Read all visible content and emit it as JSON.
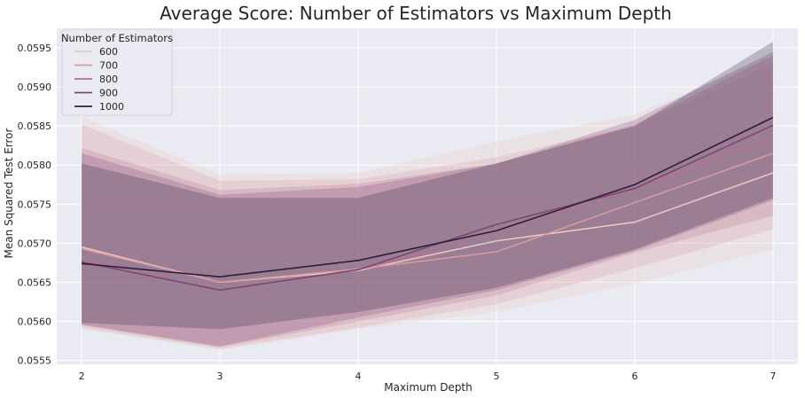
{
  "chart_data": {
    "type": "line",
    "title": "Average Score: Number of Estimators vs Maximum Depth",
    "xlabel": "Maximum Depth",
    "ylabel": "Mean Squared Test Error",
    "x": [
      2,
      3,
      4,
      5,
      6,
      7
    ],
    "xlim": [
      1.82,
      7.18
    ],
    "ylim": [
      0.05545,
      0.05975
    ],
    "yticks": [
      "0.0555",
      "0.0560",
      "0.0565",
      "0.0570",
      "0.0575",
      "0.0580",
      "0.0585",
      "0.0590",
      "0.0595"
    ],
    "grid": true,
    "legend": {
      "title": "Number of Estimators",
      "position": "top-left"
    },
    "series": [
      {
        "name": "600",
        "color": "#ecc7c1",
        "values": [
          0.05695,
          0.0565,
          0.05665,
          0.05703,
          0.05727,
          0.0579
        ],
        "lower": [
          0.0559,
          0.05563,
          0.0559,
          0.05612,
          0.05648,
          0.05692
        ],
        "upper": [
          0.05862,
          0.05788,
          0.0579,
          0.0583,
          0.05865,
          0.0594
        ]
      },
      {
        "name": "700",
        "color": "#d59aa3",
        "values": [
          0.05693,
          0.0565,
          0.05667,
          0.05689,
          0.05752,
          0.05815
        ],
        "lower": [
          0.05592,
          0.05565,
          0.05592,
          0.05622,
          0.05668,
          0.05718
        ],
        "upper": [
          0.05852,
          0.0578,
          0.05782,
          0.0581,
          0.0585,
          0.0593
        ]
      },
      {
        "name": "800",
        "color": "#b4738e",
        "values": [
          0.05678,
          0.0564,
          0.05666,
          0.05714,
          0.0577,
          0.05835
        ],
        "lower": [
          0.05595,
          0.05567,
          0.056,
          0.05633,
          0.05688,
          0.05735
        ],
        "upper": [
          0.05822,
          0.05768,
          0.05776,
          0.05802,
          0.05852,
          0.0594
        ]
      },
      {
        "name": "900",
        "color": "#7b4876",
        "values": [
          0.05676,
          0.0564,
          0.05666,
          0.05724,
          0.0577,
          0.05851
        ],
        "lower": [
          0.05596,
          0.05568,
          0.05605,
          0.0564,
          0.0569,
          0.05755
        ],
        "upper": [
          0.05815,
          0.05762,
          0.05772,
          0.05802,
          0.05858,
          0.05945
        ]
      },
      {
        "name": "1000",
        "color": "#2d1e3e",
        "values": [
          0.05674,
          0.05657,
          0.05678,
          0.05716,
          0.05775,
          0.05861
        ],
        "lower": [
          0.05598,
          0.0559,
          0.05612,
          0.05643,
          0.05692,
          0.05758
        ],
        "upper": [
          0.05802,
          0.05758,
          0.05758,
          0.05802,
          0.0585,
          0.05958
        ]
      }
    ]
  }
}
